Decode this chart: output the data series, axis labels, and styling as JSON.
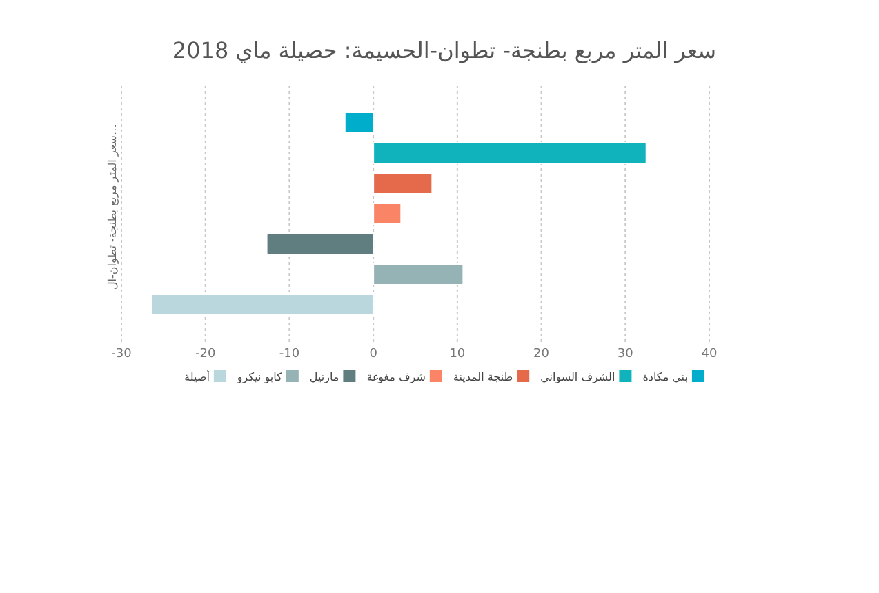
{
  "chart_data": {
    "type": "bar",
    "orientation": "horizontal",
    "title": "سعر المتر مربع بطنجة- تطوان-الحسيمة: حصيلة ماي 2018",
    "ylabel": "سعر المتر مربع بطنجة- تطوان-ال…",
    "categories": [
      null
    ],
    "series": [
      {
        "name": "بني مكادة",
        "color": "#00aecb",
        "values": [
          -3.4
        ]
      },
      {
        "name": "الشرف السواني",
        "color": "#10b3bb",
        "values": [
          32.5
        ]
      },
      {
        "name": "طنجة المدينة",
        "color": "#e56a4c",
        "values": [
          7.0
        ]
      },
      {
        "name": "شرف مغوغة",
        "color": "#f98466",
        "values": [
          3.3
        ]
      },
      {
        "name": "مارتيل",
        "color": "#607d80",
        "values": [
          -12.7
        ]
      },
      {
        "name": "كابو نيكرو",
        "color": "#95b2b5",
        "values": [
          10.7
        ]
      },
      {
        "name": "أصيلة",
        "color": "#b9d7dc",
        "values": [
          -26.4
        ]
      }
    ],
    "xlim": [
      -30,
      40
    ],
    "xticks": [
      -30,
      -20,
      -10,
      0,
      10,
      20,
      30,
      40
    ],
    "grid": "x",
    "legend": "bottom"
  }
}
